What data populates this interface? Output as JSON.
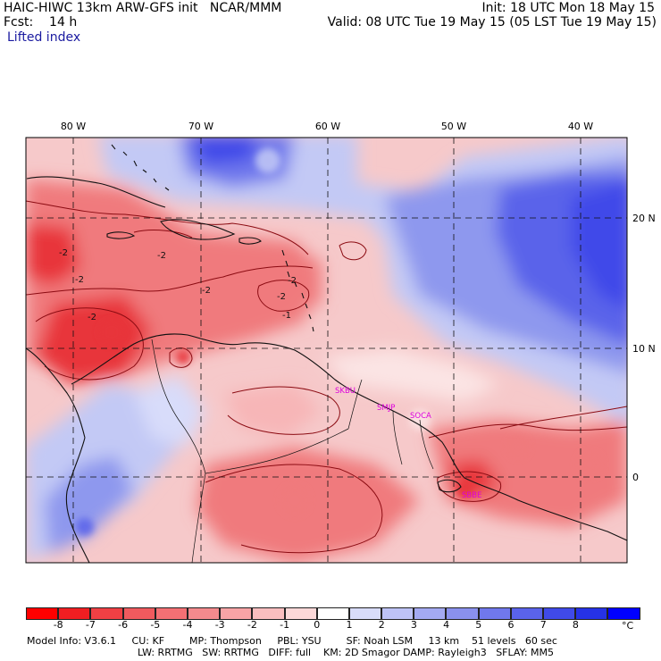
{
  "header": {
    "model_title": "HAIC-HIWC 13km ARW-GFS init   NCAR/MMM",
    "forecast_label": "Fcst:    14 h",
    "field_name": "Lifted index",
    "init_time": "Init: 18 UTC Mon 18 May 15",
    "valid_time": "Valid: 08 UTC Tue 19 May 15 (05 LST Tue 19 May 15)"
  },
  "map": {
    "longitude_labels": [
      "80 W",
      "70 W",
      "60 W",
      "50 W",
      "40 W"
    ],
    "latitude_labels": [
      "20 N",
      "10 N",
      "0"
    ],
    "contour_labels": [
      "-2",
      "-2",
      "-2",
      "-2",
      "-2",
      "-2",
      "-1",
      "-2"
    ],
    "stations": [
      "SKBU",
      "SMJP",
      "SOCA",
      "SBBE"
    ],
    "colors": {
      "unstable_deep": "#e8343a",
      "unstable_mid": "#f07a7d",
      "unstable_light": "#f7b6b7",
      "neutral": "#fbe4e4",
      "stable_light": "#c3c9f5",
      "stable_mid": "#8e98ee",
      "stable_deep": "#3f4ae9",
      "station": "#dd00dd"
    }
  },
  "colorbar": {
    "colors": [
      "#ff0000",
      "#f01e22",
      "#f04044",
      "#f05a5e",
      "#f47074",
      "#f48a8d",
      "#f8a4a6",
      "#fabebf",
      "#fcd8d8",
      "#ffffff",
      "#d8dcfa",
      "#bec3f6",
      "#a4aaf2",
      "#8a91ee",
      "#7078ec",
      "#5a63ea",
      "#404ae8",
      "#2632e6",
      "#0000ff"
    ],
    "labels": [
      "-8",
      "-7",
      "-6",
      "-5",
      "-4",
      "-3",
      "-2",
      "-1",
      "0",
      "1",
      "2",
      "3",
      "4",
      "5",
      "6",
      "7",
      "8"
    ],
    "unit": "°C"
  },
  "model_info": {
    "line1": "Model Info: V3.6.1     CU: KF        MP: Thompson     PBL: YSU        SF: Noah LSM     13 km    51 levels   60 sec",
    "line2": "LW: RRTMG   SW: RRTMG   DIFF: full    KM: 2D Smagor DAMP: Rayleigh3   SFLAY: MM5"
  }
}
